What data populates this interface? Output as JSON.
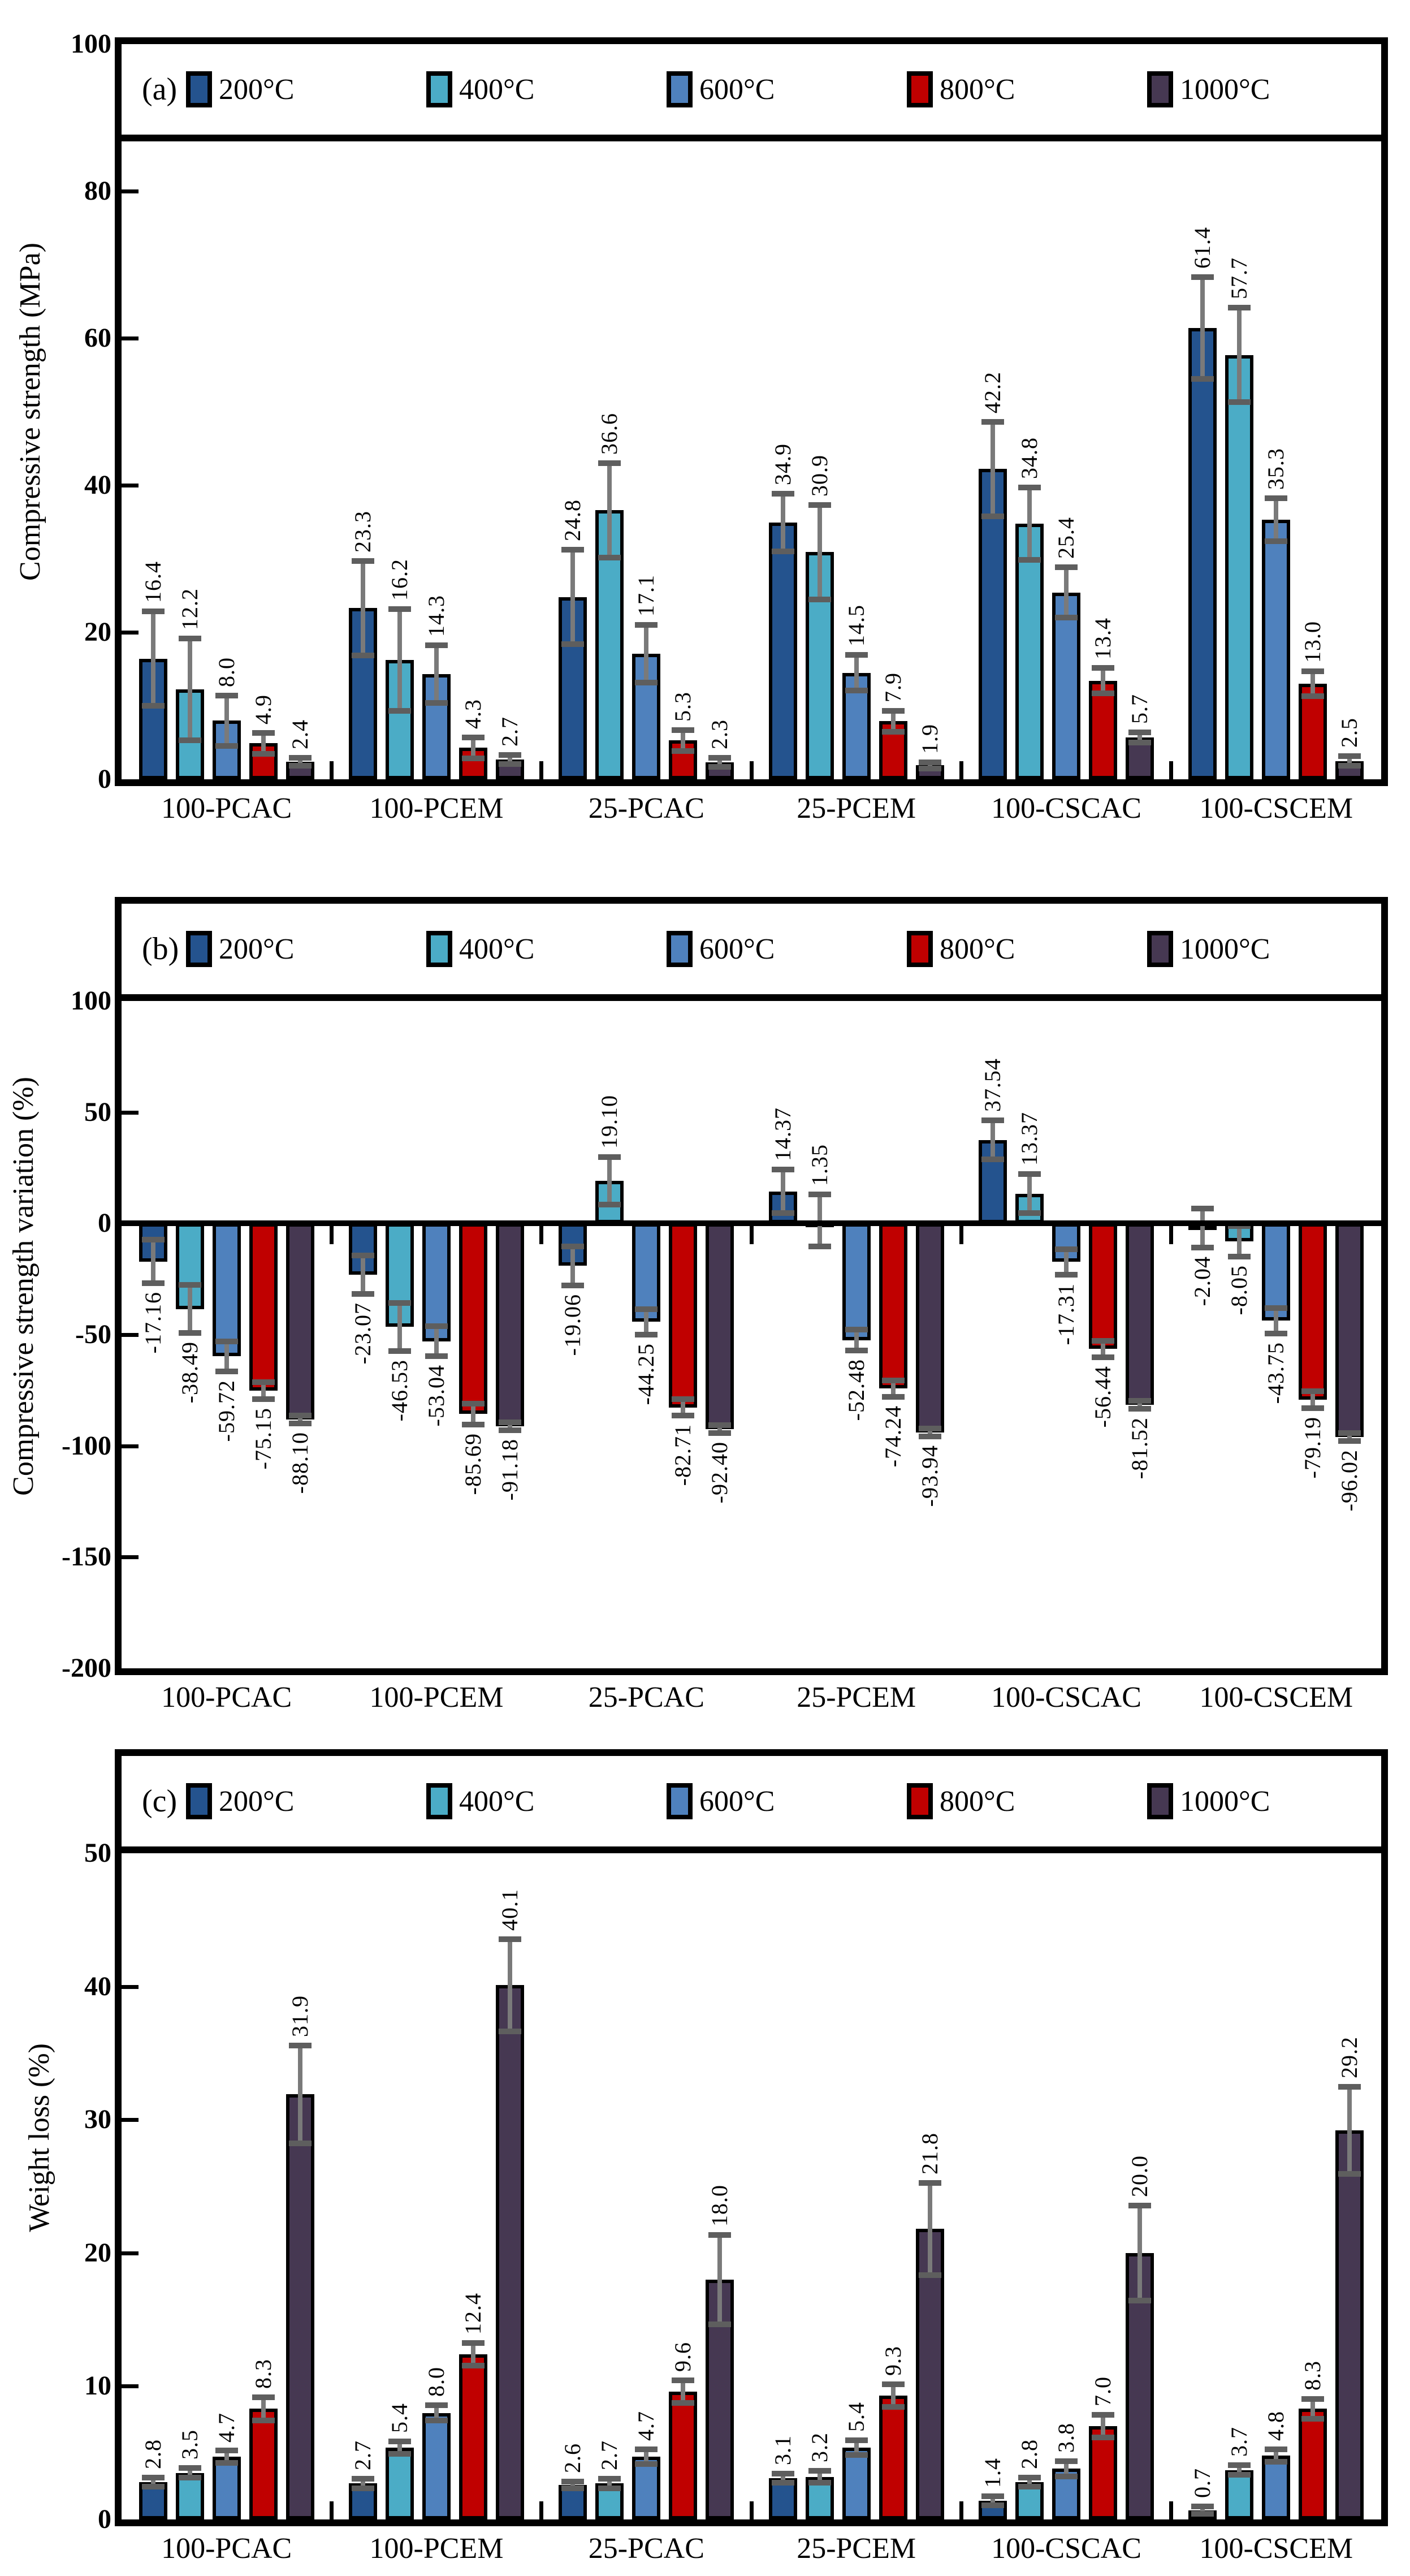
{
  "figure_title": "",
  "style": {
    "series_colors": {
      "200C": "#24538E",
      "400C": "#4BACC6",
      "600C": "#4F81BD",
      "800C": "#C00000",
      "1000C": "#463852"
    },
    "error_bar_line_color": "#7a7a7a",
    "error_bar_cap_color": "#5e5e5e",
    "bar_outline_color": "#000000",
    "frame_color": "#000000"
  },
  "chart_data": [
    {
      "id": "a",
      "panel_label": "(a)",
      "type": "bar",
      "ylabel": "Compressive strength (MPa)",
      "ylim": [
        0,
        100
      ],
      "yticks": [
        0,
        20,
        40,
        60,
        80,
        100
      ],
      "ytick_labels": [
        "0",
        "20",
        "40",
        "60",
        "80",
        "100"
      ],
      "grid": false,
      "legend_position": "top-inside",
      "categories": [
        "100-PCAC",
        "100-PCEM",
        "25-PCAC",
        "25-PCEM",
        "100-CSCAC",
        "100-CSCEM"
      ],
      "series": [
        {
          "name": "200°C",
          "color": "#24538E",
          "values": [
            16.4,
            23.3,
            24.8,
            34.9,
            42.2,
            61.4
          ],
          "labels": [
            "16.4",
            "23.3",
            "24.8",
            "34.9",
            "42.2",
            "61.4"
          ],
          "errors": [
            6.5,
            6.5,
            6.5,
            4,
            6.5,
            7
          ]
        },
        {
          "name": "400°C",
          "color": "#4BACC6",
          "values": [
            12.2,
            16.2,
            36.6,
            30.9,
            34.8,
            57.7
          ],
          "labels": [
            "12.2",
            "16.2",
            "36.6",
            "30.9",
            "34.8",
            "57.7"
          ],
          "errors": [
            7,
            7,
            6.5,
            6.5,
            5,
            6.5
          ]
        },
        {
          "name": "600°C",
          "color": "#4F81BD",
          "values": [
            8.0,
            14.3,
            17.1,
            14.5,
            25.4,
            35.3
          ],
          "labels": [
            "8.0",
            "14.3",
            "17.1",
            "14.5",
            "25.4",
            "35.3"
          ],
          "errors": [
            3.5,
            4,
            4,
            2.5,
            3.5,
            3
          ]
        },
        {
          "name": "800°C",
          "color": "#C00000",
          "values": [
            4.9,
            4.3,
            5.3,
            7.9,
            13.4,
            13.0
          ],
          "labels": [
            "4.9",
            "4.3",
            "5.3",
            "7.9",
            "13.4",
            "13.0"
          ],
          "errors": [
            1.5,
            1.5,
            1.5,
            1.5,
            1.8,
            1.8
          ]
        },
        {
          "name": "1000°C",
          "color": "#463852",
          "values": [
            2.4,
            2.7,
            2.3,
            1.9,
            5.7,
            2.5
          ],
          "labels": [
            "2.4",
            "2.7",
            "2.3",
            "1.9",
            "5.7",
            "2.5"
          ],
          "errors": [
            0.6,
            0.7,
            0.7,
            0.5,
            0.8,
            0.7
          ]
        }
      ]
    },
    {
      "id": "b",
      "panel_label": "(b)",
      "type": "bar",
      "ylabel": "Compressive strength variation  (%)",
      "ylim": [
        -200,
        100
      ],
      "yticks": [
        -200,
        -150,
        -100,
        -50,
        0,
        50,
        100
      ],
      "ytick_labels": [
        "-200",
        "-150",
        "-100",
        "-50",
        "0",
        "50",
        "100"
      ],
      "grid": false,
      "legend_position": "top-inside",
      "categories": [
        "100-PCAC",
        "100-PCEM",
        "25-PCAC",
        "25-PCEM",
        "100-CSCAC",
        "100-CSCEM"
      ],
      "series": [
        {
          "name": "200°C",
          "color": "#24538E",
          "values": [
            -17.16,
            -23.07,
            -19.06,
            14.37,
            37.54,
            -2.04
          ],
          "labels": [
            "-17.16",
            "-23.07",
            "-19.06",
            "14.37",
            "37.54",
            "-2.04"
          ],
          "errors": [
            10,
            9,
            9,
            10,
            9,
            9
          ]
        },
        {
          "name": "400°C",
          "color": "#4BACC6",
          "values": [
            -38.49,
            -46.53,
            19.1,
            1.35,
            13.37,
            -8.05
          ],
          "labels": [
            "-38.49",
            "-46.53",
            "19.10",
            "1.35",
            "13.37",
            "-8.05"
          ],
          "errors": [
            11,
            11,
            11,
            12,
            9,
            7
          ]
        },
        {
          "name": "600°C",
          "color": "#4F81BD",
          "values": [
            -59.72,
            -53.04,
            -44.25,
            -52.48,
            -17.31,
            -43.75
          ],
          "labels": [
            "-59.72",
            "-53.04",
            "-44.25",
            "-52.48",
            "-17.31",
            "-43.75"
          ],
          "errors": [
            7,
            7,
            6,
            5,
            6,
            6
          ]
        },
        {
          "name": "800°C",
          "color": "#C00000",
          "values": [
            -75.15,
            -85.69,
            -82.71,
            -74.24,
            -56.44,
            -79.19
          ],
          "labels": [
            "-75.15",
            "-85.69",
            "-82.71",
            "-74.24",
            "-56.44",
            "-79.19"
          ],
          "errors": [
            4,
            5,
            4,
            4,
            4,
            4
          ]
        },
        {
          "name": "1000°C",
          "color": "#463852",
          "values": [
            -88.1,
            -91.18,
            -92.4,
            -93.94,
            -81.52,
            -96.02
          ],
          "labels": [
            "-88.10",
            "-91.18",
            "-92.40",
            "-93.94",
            "-81.52",
            "-96.02"
          ],
          "errors": [
            2,
            2,
            2,
            2,
            2,
            2
          ]
        }
      ]
    },
    {
      "id": "c",
      "panel_label": "(c)",
      "type": "bar",
      "ylabel": "Weight loss (%)",
      "ylim": [
        0,
        50
      ],
      "yticks": [
        0,
        10,
        20,
        30,
        40,
        50
      ],
      "ytick_labels": [
        "0",
        "10",
        "20",
        "30",
        "40",
        "50"
      ],
      "grid": false,
      "legend_position": "top-inside",
      "categories": [
        "100-PCAC",
        "100-PCEM",
        "25-PCAC",
        "25-PCEM",
        "100-CSCAC",
        "100-CSCEM"
      ],
      "series": [
        {
          "name": "200°C",
          "color": "#24538E",
          "values": [
            2.8,
            2.7,
            2.6,
            3.1,
            1.4,
            0.7
          ],
          "labels": [
            "2.8",
            "2.7",
            "2.6",
            "3.1",
            "1.4",
            "0.7"
          ],
          "errors": [
            0.4,
            0.4,
            0.3,
            0.4,
            0.4,
            0.3
          ]
        },
        {
          "name": "400°C",
          "color": "#4BACC6",
          "values": [
            3.5,
            5.4,
            2.7,
            3.2,
            2.8,
            3.7
          ],
          "labels": [
            "3.5",
            "5.4",
            "2.7",
            "3.2",
            "2.8",
            "3.7"
          ],
          "errors": [
            0.4,
            0.5,
            0.4,
            0.5,
            0.4,
            0.4
          ]
        },
        {
          "name": "600°C",
          "color": "#4F81BD",
          "values": [
            4.7,
            8.0,
            4.7,
            5.4,
            3.8,
            4.8
          ],
          "labels": [
            "4.7",
            "8.0",
            "4.7",
            "5.4",
            "3.8",
            "4.8"
          ],
          "errors": [
            0.5,
            0.6,
            0.6,
            0.6,
            0.6,
            0.5
          ]
        },
        {
          "name": "800°C",
          "color": "#C00000",
          "values": [
            8.3,
            12.4,
            9.6,
            9.3,
            7.0,
            8.3
          ],
          "labels": [
            "8.3",
            "12.4",
            "9.6",
            "9.3",
            "7.0",
            "8.3"
          ],
          "errors": [
            0.9,
            0.9,
            0.9,
            0.9,
            0.9,
            0.8
          ]
        },
        {
          "name": "1000°C",
          "color": "#463852",
          "values": [
            31.9,
            40.1,
            18.0,
            21.8,
            20.0,
            29.2
          ],
          "labels": [
            "31.9",
            "40.1",
            "18.0",
            "21.8",
            "20.0",
            "29.2"
          ],
          "errors": [
            3.7,
            3.5,
            3.4,
            3.5,
            3.6,
            3.3
          ]
        }
      ]
    }
  ]
}
